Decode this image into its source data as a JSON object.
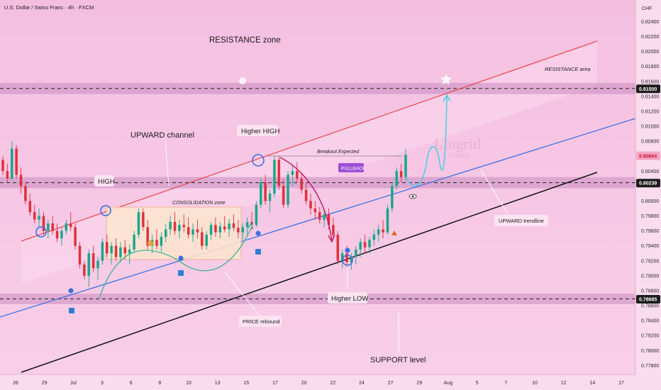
{
  "header": {
    "symbol_title": "U.S. Dollar / Swiss Franc · 4h · FXCM",
    "currency": "CHF"
  },
  "watermark": {
    "brand": "Lingrid",
    "sub": "FOREX"
  },
  "chart_data": {
    "type": "candlestick",
    "title": "U.S. Dollar / Swiss Franc · 4h · FXCM",
    "y_unit": "CHF",
    "ylim": [
      0.7768,
      0.8248
    ],
    "y_ticks": [
      "0.82400",
      "0.82200",
      "0.82000",
      "0.81800",
      "0.81600",
      "0.81500",
      "0.81400",
      "0.81200",
      "0.81000",
      "0.80800",
      "0.80604",
      "0.80400",
      "0.80239",
      "0.80000",
      "0.79800",
      "0.79600",
      "0.79400",
      "0.79200",
      "0.79000",
      "0.78800",
      "0.78685",
      "0.78600",
      "0.78400",
      "0.78200",
      "0.78000",
      "0.77800"
    ],
    "x_ticks": [
      "26",
      "29",
      "Jul",
      "3",
      "6",
      "8",
      "10",
      "13",
      "15",
      "17",
      "20",
      "22",
      "24",
      "27",
      "29",
      "Aug",
      "5",
      "7",
      "10",
      "12",
      "14",
      "17"
    ],
    "price_badges": [
      {
        "value": "0.81500",
        "price": 0.815,
        "style": "dark"
      },
      {
        "value": "0.80604",
        "price": 0.80604,
        "style": "red"
      },
      {
        "value": "0.80239",
        "price": 0.80239,
        "style": "dark"
      },
      {
        "value": "0.78685",
        "price": 0.78685,
        "style": "dark"
      }
    ],
    "zones": [
      {
        "name": "resistance-area",
        "from": 0.8143,
        "to": 0.8158
      },
      {
        "name": "mid-level",
        "from": 0.8017,
        "to": 0.8032
      },
      {
        "name": "support-level",
        "from": 0.7862,
        "to": 0.7876
      }
    ],
    "annotations": {
      "resistance_zone": "RESISTANCE zone",
      "resistance_area": "RESISTANCE area",
      "upward_channel": "UPWARD channel",
      "higher_high": "Higher HIGH",
      "high": "HIGH",
      "consolidation_zone": "CONSOLIDATION zone",
      "breakout_expected": "Breakout Expected",
      "pullback": "PULLBACK",
      "upward_trendline": "UPWARD trendline",
      "higher_low": "Higher LOW",
      "price_rebound": "PRICE rebound",
      "support_level": "SUPPORT level"
    },
    "candles": [
      [
        0.8055,
        0.806,
        0.8035,
        0.804
      ],
      [
        0.804,
        0.805,
        0.8025,
        0.803
      ],
      [
        0.803,
        0.808,
        0.8028,
        0.807
      ],
      [
        0.807,
        0.8075,
        0.803,
        0.8035
      ],
      [
        0.8035,
        0.8045,
        0.801,
        0.802
      ],
      [
        0.802,
        0.8025,
        0.7995,
        0.8
      ],
      [
        0.8,
        0.801,
        0.798,
        0.7985
      ],
      [
        0.7985,
        0.7995,
        0.797,
        0.7975
      ],
      [
        0.7975,
        0.799,
        0.7965,
        0.798
      ],
      [
        0.798,
        0.7985,
        0.7955,
        0.796
      ],
      [
        0.796,
        0.7975,
        0.795,
        0.797
      ],
      [
        0.797,
        0.798,
        0.7955,
        0.796
      ],
      [
        0.796,
        0.797,
        0.7945,
        0.795
      ],
      [
        0.795,
        0.7965,
        0.794,
        0.796
      ],
      [
        0.796,
        0.7975,
        0.7955,
        0.797
      ],
      [
        0.797,
        0.7985,
        0.796,
        0.7965
      ],
      [
        0.7965,
        0.797,
        0.7935,
        0.794
      ],
      [
        0.794,
        0.7945,
        0.791,
        0.7915
      ],
      [
        0.7915,
        0.792,
        0.7895,
        0.79
      ],
      [
        0.79,
        0.7935,
        0.7885,
        0.793
      ],
      [
        0.793,
        0.794,
        0.7905,
        0.791
      ],
      [
        0.791,
        0.7925,
        0.7895,
        0.792
      ],
      [
        0.792,
        0.795,
        0.7915,
        0.7945
      ],
      [
        0.7945,
        0.7955,
        0.7925,
        0.793
      ],
      [
        0.793,
        0.7945,
        0.7915,
        0.794
      ],
      [
        0.794,
        0.795,
        0.792,
        0.7925
      ],
      [
        0.7925,
        0.7945,
        0.7918,
        0.7938
      ],
      [
        0.7938,
        0.7948,
        0.7922,
        0.793
      ],
      [
        0.793,
        0.7942,
        0.7915,
        0.7935
      ],
      [
        0.7935,
        0.796,
        0.793,
        0.7955
      ],
      [
        0.7955,
        0.799,
        0.795,
        0.7985
      ],
      [
        0.7985,
        0.799,
        0.796,
        0.7965
      ],
      [
        0.7965,
        0.7975,
        0.7935,
        0.794
      ],
      [
        0.794,
        0.7955,
        0.793,
        0.7948
      ],
      [
        0.7948,
        0.7962,
        0.7935,
        0.794
      ],
      [
        0.794,
        0.7958,
        0.7932,
        0.7952
      ],
      [
        0.7952,
        0.797,
        0.7945,
        0.7962
      ],
      [
        0.7962,
        0.798,
        0.7955,
        0.7972
      ],
      [
        0.7972,
        0.7985,
        0.7955,
        0.796
      ],
      [
        0.796,
        0.7975,
        0.795,
        0.7968
      ],
      [
        0.7968,
        0.7982,
        0.7958,
        0.7965
      ],
      [
        0.7965,
        0.7978,
        0.795,
        0.7955
      ],
      [
        0.7955,
        0.797,
        0.7945,
        0.7962
      ],
      [
        0.7962,
        0.7975,
        0.795,
        0.7958
      ],
      [
        0.7958,
        0.7965,
        0.7935,
        0.794
      ],
      [
        0.794,
        0.796,
        0.7935,
        0.7955
      ],
      [
        0.7955,
        0.7972,
        0.7948,
        0.7968
      ],
      [
        0.7968,
        0.7978,
        0.7952,
        0.7958
      ],
      [
        0.7958,
        0.7972,
        0.795,
        0.7966
      ],
      [
        0.7966,
        0.798,
        0.7958,
        0.7962
      ],
      [
        0.7962,
        0.7976,
        0.7952,
        0.797
      ],
      [
        0.797,
        0.7982,
        0.796,
        0.7964
      ],
      [
        0.7964,
        0.7975,
        0.795,
        0.7958
      ],
      [
        0.7958,
        0.797,
        0.7948,
        0.7965
      ],
      [
        0.7965,
        0.7978,
        0.7955,
        0.7972
      ],
      [
        0.7972,
        0.7985,
        0.7962,
        0.7968
      ],
      [
        0.7968,
        0.8,
        0.7965,
        0.7995
      ],
      [
        0.7995,
        0.803,
        0.799,
        0.8025
      ],
      [
        0.8025,
        0.8035,
        0.7995,
        0.8
      ],
      [
        0.8,
        0.8015,
        0.7985,
        0.801
      ],
      [
        0.801,
        0.806,
        0.8005,
        0.8055
      ],
      [
        0.8055,
        0.806,
        0.8015,
        0.802
      ],
      [
        0.802,
        0.803,
        0.799,
        0.7995
      ],
      [
        0.7995,
        0.804,
        0.799,
        0.8035
      ],
      [
        0.8035,
        0.8048,
        0.802,
        0.804
      ],
      [
        0.804,
        0.8052,
        0.8025,
        0.803
      ],
      [
        0.803,
        0.8038,
        0.801,
        0.8015
      ],
      [
        0.8015,
        0.8025,
        0.7995,
        0.8
      ],
      [
        0.8,
        0.801,
        0.7982,
        0.799
      ],
      [
        0.799,
        0.8,
        0.7975,
        0.7985
      ],
      [
        0.7985,
        0.7992,
        0.797,
        0.7975
      ],
      [
        0.7975,
        0.7988,
        0.7965,
        0.7982
      ],
      [
        0.7982,
        0.799,
        0.7962,
        0.7968
      ],
      [
        0.7968,
        0.7978,
        0.795,
        0.7955
      ],
      [
        0.7955,
        0.796,
        0.7915,
        0.792
      ],
      [
        0.792,
        0.7935,
        0.791,
        0.793
      ],
      [
        0.793,
        0.794,
        0.7912,
        0.7918
      ],
      [
        0.7918,
        0.793,
        0.7908,
        0.7925
      ],
      [
        0.7925,
        0.794,
        0.7915,
        0.7935
      ],
      [
        0.7935,
        0.795,
        0.7925,
        0.7945
      ],
      [
        0.7945,
        0.7955,
        0.793,
        0.7938
      ],
      [
        0.7938,
        0.7952,
        0.793,
        0.7948
      ],
      [
        0.7948,
        0.7962,
        0.794,
        0.7955
      ],
      [
        0.7955,
        0.7968,
        0.7945,
        0.7962
      ],
      [
        0.7962,
        0.7975,
        0.795,
        0.7958
      ],
      [
        0.7958,
        0.7995,
        0.7955,
        0.799
      ],
      [
        0.799,
        0.8025,
        0.7985,
        0.802
      ],
      [
        0.802,
        0.8045,
        0.8015,
        0.804
      ],
      [
        0.804,
        0.805,
        0.8025,
        0.8032
      ],
      [
        0.8032,
        0.807,
        0.8028,
        0.8062
      ]
    ]
  }
}
